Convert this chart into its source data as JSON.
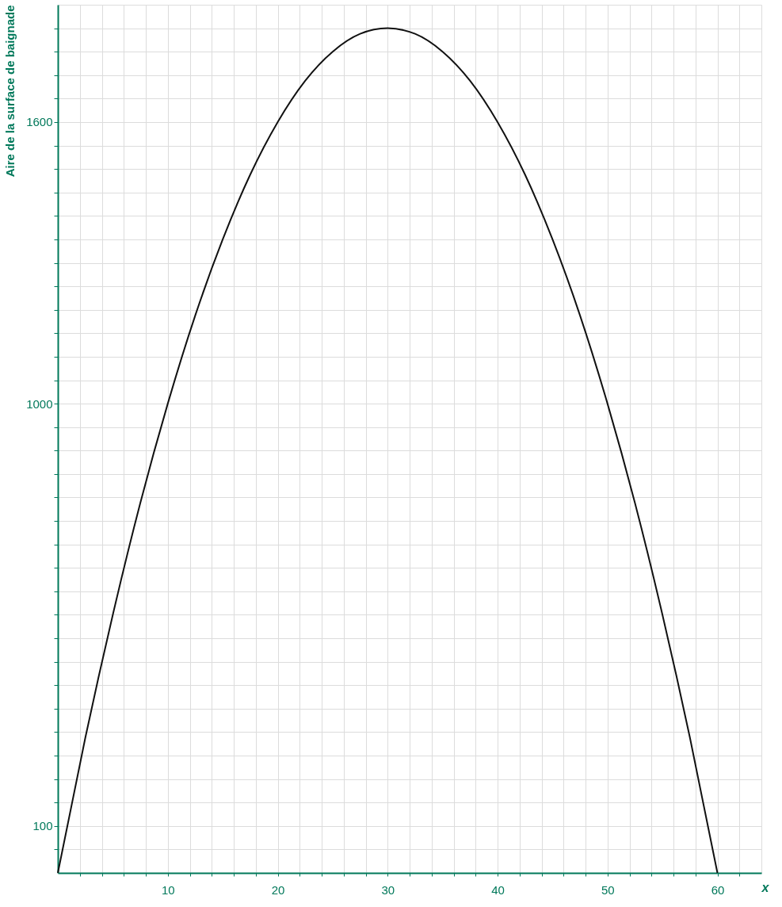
{
  "chart_data": {
    "type": "line",
    "xlabel": "x",
    "ylabel": "Aire de la surface de baignade",
    "x": [
      0,
      2.5,
      5,
      7.5,
      10,
      12.5,
      15,
      17.5,
      20,
      22.5,
      25,
      27.5,
      30,
      32.5,
      35,
      37.5,
      40,
      42.5,
      45,
      47.5,
      50,
      52.5,
      55,
      57.5,
      60
    ],
    "series": [
      {
        "color": "#111111",
        "values": [
          0,
          288,
          550,
          788,
          1000,
          1188,
          1350,
          1488,
          1600,
          1688,
          1750,
          1788,
          1800,
          1788,
          1750,
          1688,
          1600,
          1488,
          1350,
          1188,
          1000,
          788,
          550,
          288,
          0
        ]
      }
    ],
    "xlim": [
      0,
      64
    ],
    "ylim": [
      0,
      1850
    ],
    "xticks": [
      {
        "value": 2,
        "label": null
      },
      {
        "value": 4,
        "label": null
      },
      {
        "value": 6,
        "label": null
      },
      {
        "value": 8,
        "label": null
      },
      10,
      {
        "value": 12,
        "label": null
      },
      {
        "value": 14,
        "label": null
      },
      {
        "value": 16,
        "label": null
      },
      {
        "value": 18,
        "label": null
      },
      20,
      {
        "value": 22,
        "label": null
      },
      {
        "value": 24,
        "label": null
      },
      {
        "value": 26,
        "label": null
      },
      {
        "value": 28,
        "label": null
      },
      30,
      {
        "value": 32,
        "label": null
      },
      {
        "value": 34,
        "label": null
      },
      {
        "value": 36,
        "label": null
      },
      {
        "value": 38,
        "label": null
      },
      40,
      {
        "value": 42,
        "label": null
      },
      {
        "value": 44,
        "label": null
      },
      {
        "value": 46,
        "label": null
      },
      {
        "value": 48,
        "label": null
      },
      50,
      {
        "value": 52,
        "label": null
      },
      {
        "value": 54,
        "label": null
      },
      {
        "value": 56,
        "label": null
      },
      {
        "value": 58,
        "label": null
      },
      60,
      {
        "value": 62,
        "label": null
      }
    ],
    "yticks": [
      {
        "value": 50,
        "label": null
      },
      100,
      {
        "value": 150,
        "label": null
      },
      {
        "value": 200,
        "label": null
      },
      {
        "value": 250,
        "label": null
      },
      {
        "value": 300,
        "label": null
      },
      {
        "value": 350,
        "label": null
      },
      {
        "value": 400,
        "label": null
      },
      {
        "value": 450,
        "label": null
      },
      {
        "value": 500,
        "label": null
      },
      {
        "value": 550,
        "label": null
      },
      {
        "value": 600,
        "label": null
      },
      {
        "value": 650,
        "label": null
      },
      {
        "value": 700,
        "label": null
      },
      {
        "value": 750,
        "label": null
      },
      {
        "value": 800,
        "label": null
      },
      {
        "value": 850,
        "label": null
      },
      {
        "value": 900,
        "label": null
      },
      {
        "value": 950,
        "label": null
      },
      1000,
      {
        "value": 1050,
        "label": null
      },
      {
        "value": 1100,
        "label": null
      },
      {
        "value": 1150,
        "label": null
      },
      {
        "value": 1200,
        "label": null
      },
      {
        "value": 1250,
        "label": null
      },
      {
        "value": 1300,
        "label": null
      },
      {
        "value": 1350,
        "label": null
      },
      {
        "value": 1400,
        "label": null
      },
      {
        "value": 1450,
        "label": null
      },
      {
        "value": 1500,
        "label": null
      },
      {
        "value": 1550,
        "label": null
      },
      1600,
      {
        "value": 1650,
        "label": null
      },
      {
        "value": 1700,
        "label": null
      },
      {
        "value": 1750,
        "label": null
      },
      {
        "value": 1800,
        "label": null
      }
    ],
    "grid": true,
    "marker": "none",
    "line_style": "solid"
  }
}
